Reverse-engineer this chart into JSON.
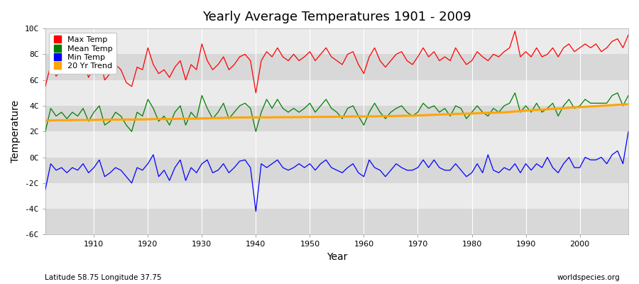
{
  "title": "Yearly Average Temperatures 1901 - 2009",
  "xlabel": "Year",
  "ylabel": "Temperature",
  "subtitle_left": "Latitude 58.75 Longitude 37.75",
  "subtitle_right": "worldspecies.org",
  "ylim": [
    -6,
    10
  ],
  "xlim": [
    1901,
    2009
  ],
  "yticks": [
    -6,
    -4,
    -2,
    0,
    2,
    4,
    6,
    8,
    10
  ],
  "ytick_labels": [
    "-6C",
    "-4C",
    "-2C",
    "0C",
    "2C",
    "4C",
    "6C",
    "8C",
    "10C"
  ],
  "xticks": [
    1910,
    1920,
    1930,
    1940,
    1950,
    1960,
    1970,
    1980,
    1990,
    2000
  ],
  "colors": {
    "max": "#ff0000",
    "mean": "#008000",
    "min": "#0000ff",
    "trend": "#ffa500",
    "fig_bg": "#ffffff",
    "plot_bg": "#ffffff",
    "band_dark": "#d8d8d8",
    "band_light": "#ebebeb",
    "grid": "#ffffff"
  },
  "legend": [
    "Max Temp",
    "Mean Temp",
    "Min Temp",
    "20 Yr Trend"
  ],
  "years": [
    1901,
    1902,
    1903,
    1904,
    1905,
    1906,
    1907,
    1908,
    1909,
    1910,
    1911,
    1912,
    1913,
    1914,
    1915,
    1916,
    1917,
    1918,
    1919,
    1920,
    1921,
    1922,
    1923,
    1924,
    1925,
    1926,
    1927,
    1928,
    1929,
    1930,
    1931,
    1932,
    1933,
    1934,
    1935,
    1936,
    1937,
    1938,
    1939,
    1940,
    1941,
    1942,
    1943,
    1944,
    1945,
    1946,
    1947,
    1948,
    1949,
    1950,
    1951,
    1952,
    1953,
    1954,
    1955,
    1956,
    1957,
    1958,
    1959,
    1960,
    1961,
    1962,
    1963,
    1964,
    1965,
    1966,
    1967,
    1968,
    1969,
    1970,
    1971,
    1972,
    1973,
    1974,
    1975,
    1976,
    1977,
    1978,
    1979,
    1980,
    1981,
    1982,
    1983,
    1984,
    1985,
    1986,
    1987,
    1988,
    1989,
    1990,
    1991,
    1992,
    1993,
    1994,
    1995,
    1996,
    1997,
    1998,
    1999,
    2000,
    2001,
    2002,
    2003,
    2004,
    2005,
    2006,
    2007,
    2008,
    2009
  ],
  "max_temp": [
    5.5,
    7.2,
    6.3,
    6.8,
    6.5,
    7.0,
    6.8,
    7.5,
    6.2,
    7.0,
    7.8,
    6.0,
    6.5,
    7.2,
    6.8,
    5.8,
    5.5,
    7.0,
    6.8,
    8.5,
    7.2,
    6.5,
    6.8,
    6.2,
    7.0,
    7.5,
    6.0,
    7.2,
    6.8,
    8.8,
    7.5,
    6.8,
    7.2,
    7.8,
    6.8,
    7.2,
    7.8,
    8.0,
    7.5,
    5.0,
    7.5,
    8.2,
    7.8,
    8.5,
    7.8,
    7.5,
    8.0,
    7.5,
    7.8,
    8.2,
    7.5,
    8.0,
    8.5,
    7.8,
    7.5,
    7.2,
    8.0,
    8.2,
    7.2,
    6.5,
    7.8,
    8.5,
    7.5,
    7.0,
    7.5,
    8.0,
    8.2,
    7.5,
    7.2,
    7.8,
    8.5,
    7.8,
    8.2,
    7.5,
    7.8,
    7.5,
    8.5,
    7.8,
    7.2,
    7.5,
    8.2,
    7.8,
    7.5,
    8.0,
    7.8,
    8.2,
    8.5,
    9.8,
    7.8,
    8.2,
    7.8,
    8.5,
    7.8,
    8.0,
    8.5,
    7.8,
    8.5,
    8.8,
    8.2,
    8.5,
    8.8,
    8.5,
    8.8,
    8.2,
    8.5,
    9.0,
    9.2,
    8.5,
    9.5
  ],
  "mean_temp": [
    2.0,
    3.8,
    3.2,
    3.5,
    3.0,
    3.5,
    3.2,
    3.8,
    2.8,
    3.5,
    4.0,
    2.5,
    2.8,
    3.5,
    3.2,
    2.5,
    2.0,
    3.5,
    3.2,
    4.5,
    3.8,
    2.8,
    3.2,
    2.5,
    3.5,
    4.0,
    2.5,
    3.5,
    3.0,
    4.8,
    3.8,
    3.0,
    3.5,
    4.2,
    3.0,
    3.5,
    4.0,
    4.2,
    3.8,
    2.0,
    3.5,
    4.5,
    3.8,
    4.5,
    3.8,
    3.5,
    3.8,
    3.5,
    3.8,
    4.2,
    3.5,
    4.0,
    4.5,
    3.8,
    3.5,
    3.0,
    3.8,
    4.0,
    3.2,
    2.5,
    3.5,
    4.2,
    3.5,
    3.0,
    3.5,
    3.8,
    4.0,
    3.5,
    3.2,
    3.5,
    4.2,
    3.8,
    4.0,
    3.5,
    3.8,
    3.2,
    4.0,
    3.8,
    3.0,
    3.5,
    4.0,
    3.5,
    3.2,
    3.8,
    3.5,
    4.0,
    4.2,
    5.0,
    3.5,
    4.0,
    3.5,
    4.2,
    3.5,
    3.8,
    4.2,
    3.2,
    4.0,
    4.5,
    3.8,
    4.0,
    4.5,
    4.2,
    4.2,
    4.2,
    4.2,
    4.8,
    5.0,
    4.0,
    4.8
  ],
  "min_temp": [
    -2.5,
    -0.5,
    -1.0,
    -0.8,
    -1.2,
    -0.8,
    -1.0,
    -0.5,
    -1.2,
    -0.8,
    -0.2,
    -1.5,
    -1.2,
    -0.8,
    -1.0,
    -1.5,
    -2.0,
    -0.8,
    -1.0,
    -0.5,
    0.2,
    -1.5,
    -1.0,
    -1.8,
    -0.8,
    -0.2,
    -1.8,
    -0.8,
    -1.2,
    -0.5,
    -0.2,
    -1.2,
    -1.0,
    -0.5,
    -1.2,
    -0.8,
    -0.3,
    -0.2,
    -0.8,
    -4.2,
    -0.5,
    -0.8,
    -0.5,
    -0.2,
    -0.8,
    -1.0,
    -0.8,
    -0.5,
    -0.8,
    -0.5,
    -1.0,
    -0.5,
    -0.2,
    -0.8,
    -1.0,
    -1.2,
    -0.8,
    -0.5,
    -1.2,
    -1.5,
    -0.2,
    -0.8,
    -1.0,
    -1.5,
    -1.0,
    -0.5,
    -0.8,
    -1.0,
    -1.0,
    -0.8,
    -0.2,
    -0.8,
    -0.2,
    -0.8,
    -1.0,
    -1.0,
    -0.5,
    -1.0,
    -1.5,
    -1.2,
    -0.5,
    -1.2,
    0.2,
    -1.0,
    -1.2,
    -0.8,
    -1.0,
    -0.5,
    -1.2,
    -0.5,
    -1.0,
    -0.5,
    -0.8,
    0.0,
    -0.8,
    -1.2,
    -0.5,
    0.0,
    -0.8,
    -0.8,
    0.0,
    -0.2,
    -0.2,
    0.0,
    -0.5,
    0.2,
    0.5,
    -0.5,
    2.0
  ],
  "trend": [
    2.85,
    2.86,
    2.87,
    2.88,
    2.88,
    2.89,
    2.89,
    2.9,
    2.9,
    2.9,
    2.92,
    2.92,
    2.92,
    2.92,
    2.93,
    2.93,
    2.93,
    2.94,
    2.94,
    2.95,
    2.97,
    2.97,
    2.97,
    2.97,
    2.98,
    3.0,
    3.0,
    3.0,
    3.0,
    3.02,
    3.03,
    3.04,
    3.05,
    3.06,
    3.07,
    3.08,
    3.09,
    3.09,
    3.1,
    3.1,
    3.1,
    3.1,
    3.1,
    3.11,
    3.11,
    3.11,
    3.12,
    3.12,
    3.13,
    3.13,
    3.13,
    3.14,
    3.14,
    3.14,
    3.15,
    3.15,
    3.16,
    3.17,
    3.17,
    3.17,
    3.18,
    3.18,
    3.19,
    3.2,
    3.2,
    3.21,
    3.22,
    3.23,
    3.23,
    3.25,
    3.26,
    3.28,
    3.3,
    3.32,
    3.33,
    3.35,
    3.37,
    3.38,
    3.39,
    3.4,
    3.42,
    3.44,
    3.45,
    3.46,
    3.47,
    3.49,
    3.52,
    3.56,
    3.59,
    3.62,
    3.65,
    3.68,
    3.7,
    3.73,
    3.76,
    3.78,
    3.81,
    3.85,
    3.88,
    3.9,
    3.92,
    3.95,
    3.97,
    4.0,
    4.02,
    4.05,
    4.08,
    4.1,
    4.12
  ]
}
